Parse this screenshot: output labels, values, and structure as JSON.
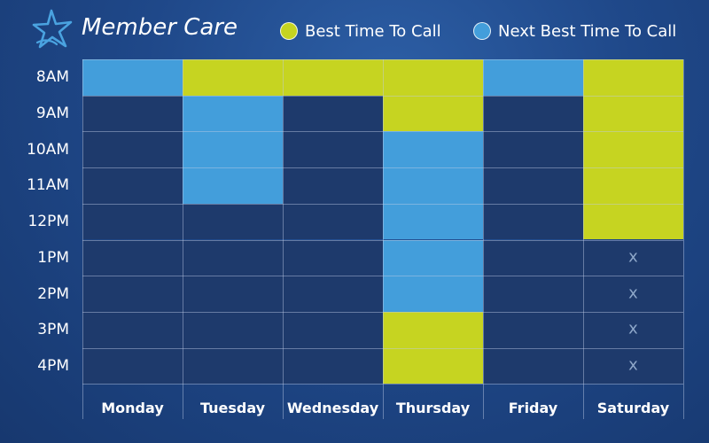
{
  "header": {
    "brand": "Member Care",
    "logo_icon": "star-swoosh-icon"
  },
  "legend": {
    "best_label": "Best Time To Call",
    "next_label": "Next Best Time To Call"
  },
  "colors": {
    "best": "#c6d421",
    "next": "#439edb",
    "off": "#1e3a6c",
    "closed_mark": "#8ea7c9"
  },
  "chart_data": {
    "type": "heatmap",
    "rows": [
      "8AM",
      "9AM",
      "10AM",
      "11AM",
      "12PM",
      "1PM",
      "2PM",
      "3PM",
      "4PM"
    ],
    "columns": [
      "Monday",
      "Tuesday",
      "Wednesday",
      "Thursday",
      "Friday",
      "Saturday"
    ],
    "closed_mark": "x",
    "legend": [
      {
        "key": "best",
        "label": "Best Time To Call"
      },
      {
        "key": "next",
        "label": "Next Best Time To Call"
      }
    ],
    "cells": [
      [
        "next",
        "best",
        "best",
        "best",
        "next",
        "best"
      ],
      [
        "off",
        "next",
        "off",
        "best",
        "off",
        "best"
      ],
      [
        "off",
        "next",
        "off",
        "next",
        "off",
        "best"
      ],
      [
        "off",
        "next",
        "off",
        "next",
        "off",
        "best"
      ],
      [
        "off",
        "off",
        "off",
        "next",
        "off",
        "best"
      ],
      [
        "off",
        "off",
        "off",
        "next",
        "off",
        "closed"
      ],
      [
        "off",
        "off",
        "off",
        "next",
        "off",
        "closed"
      ],
      [
        "off",
        "off",
        "off",
        "best",
        "off",
        "closed"
      ],
      [
        "off",
        "off",
        "off",
        "best",
        "off",
        "closed"
      ]
    ]
  }
}
